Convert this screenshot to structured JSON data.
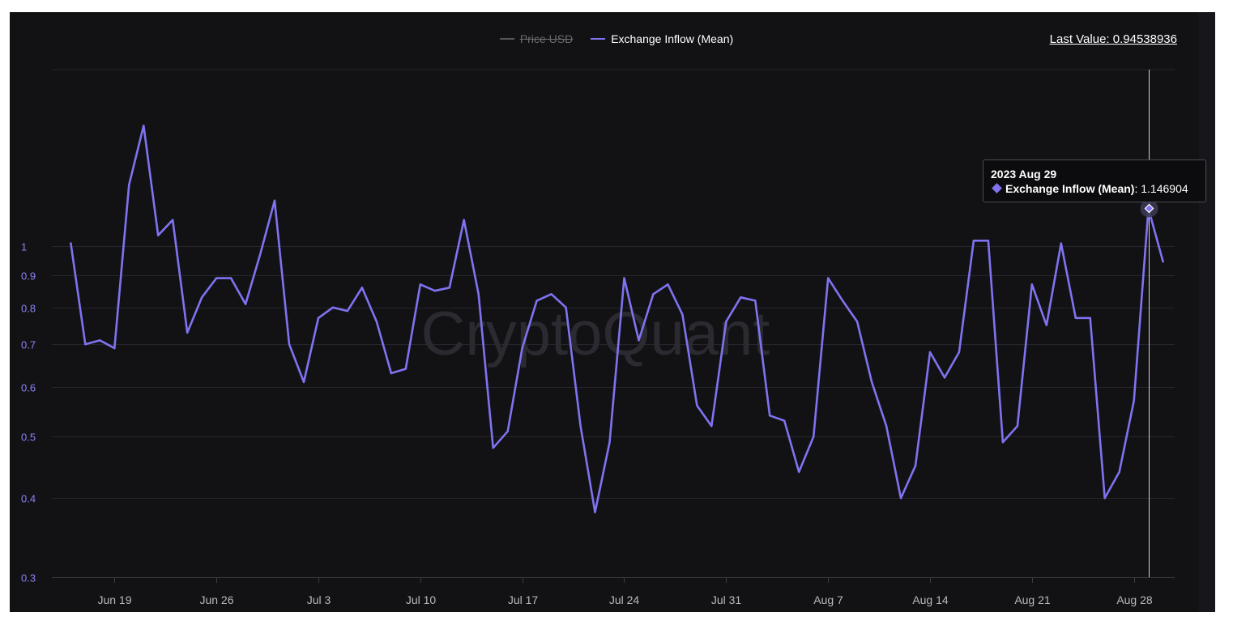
{
  "colors": {
    "series": "#7f73f0",
    "axis_text": "#8b82f4",
    "x_text": "#b8b8c0",
    "grid": "#26262c",
    "price_legend": "#55555c"
  },
  "header": {
    "last_value_label": "Last Value: 0.94538936"
  },
  "tooltip": {
    "date": "2023 Aug 29",
    "series_label": "Exchange Inflow (Mean)",
    "separator": ":",
    "value": "1.146904"
  },
  "chart_data": {
    "type": "line",
    "title": "",
    "watermark": "CryptoQuant",
    "legend": [
      {
        "name": "Price USD",
        "enabled": false
      },
      {
        "name": "Exchange Inflow (Mean)",
        "enabled": true
      }
    ],
    "y_scale": "log",
    "ylim": [
      0.3,
      1.9
    ],
    "y_ticks": [
      {
        "value": 0.3,
        "label": "0.3"
      },
      {
        "value": 0.4,
        "label": "0.4"
      },
      {
        "value": 0.5,
        "label": "0.5"
      },
      {
        "value": 0.6,
        "label": "0.6"
      },
      {
        "value": 0.7,
        "label": "0.7"
      },
      {
        "value": 0.8,
        "label": "0.8"
      },
      {
        "value": 0.9,
        "label": "0.9"
      },
      {
        "value": 1.0,
        "label": "1"
      }
    ],
    "x_range_days": [
      -4.3,
      72.8
    ],
    "x_ticks": [
      {
        "day": 0,
        "label": "Jun 19"
      },
      {
        "day": 7,
        "label": "Jun 26"
      },
      {
        "day": 14,
        "label": "Jul 3"
      },
      {
        "day": 21,
        "label": "Jul 10"
      },
      {
        "day": 28,
        "label": "Jul 17"
      },
      {
        "day": 35,
        "label": "Jul 24"
      },
      {
        "day": 42,
        "label": "Jul 31"
      },
      {
        "day": 49,
        "label": "Aug 7"
      },
      {
        "day": 56,
        "label": "Aug 14"
      },
      {
        "day": 63,
        "label": "Aug 21"
      },
      {
        "day": 70,
        "label": "Aug 28"
      }
    ],
    "series": [
      {
        "name": "Exchange Inflow (Mean)",
        "start_day": -3,
        "values": [
          1.01,
          0.7,
          0.71,
          0.69,
          1.25,
          1.55,
          1.04,
          1.1,
          0.73,
          0.83,
          0.89,
          0.89,
          0.81,
          0.97,
          1.18,
          0.7,
          0.61,
          0.77,
          0.8,
          0.79,
          0.86,
          0.76,
          0.63,
          0.64,
          0.87,
          0.85,
          0.86,
          1.1,
          0.84,
          0.48,
          0.51,
          0.69,
          0.82,
          0.84,
          0.8,
          0.52,
          0.38,
          0.49,
          0.89,
          0.71,
          0.84,
          0.87,
          0.78,
          0.56,
          0.52,
          0.76,
          0.83,
          0.82,
          0.54,
          0.53,
          0.44,
          0.5,
          0.89,
          0.82,
          0.76,
          0.61,
          0.52,
          0.4,
          0.45,
          0.68,
          0.62,
          0.68,
          1.02,
          1.02,
          0.49,
          0.52,
          0.87,
          0.75,
          1.01,
          0.77,
          0.77,
          0.4,
          0.44,
          0.57,
          1.146904,
          0.94538936
        ]
      }
    ],
    "highlight": {
      "date": "2023 Aug 29",
      "day": 71,
      "value": 1.146904
    }
  }
}
